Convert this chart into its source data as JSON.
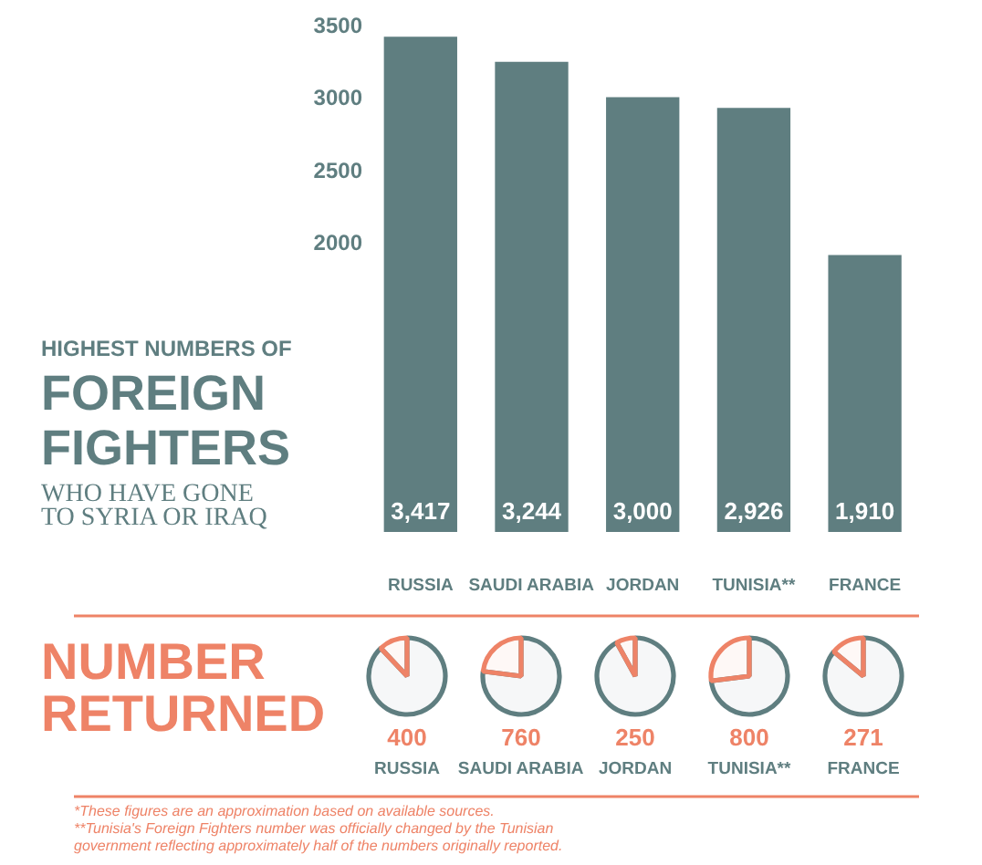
{
  "chart_data": [
    {
      "type": "bar",
      "title": "HIGHEST NUMBERS OF\nFOREIGN\nFIGHTERS\nWHO HAVE GONE\nTO SYRIA OR IRAQ",
      "categories": [
        "RUSSIA",
        "SAUDI ARABIA",
        "JORDAN",
        "TUNISIA**",
        "FRANCE"
      ],
      "values": [
        3417,
        3244,
        3000,
        2926,
        1910
      ],
      "value_labels": [
        "3,417",
        "3,244",
        "3,000",
        "2,926",
        "1,910"
      ],
      "color": "#5f7e80",
      "ylim": [
        0,
        3500
      ],
      "yticks": [
        2000,
        2500,
        3000,
        3500
      ]
    },
    {
      "type": "other",
      "title": "NUMBER\nRETURNED",
      "annotations": [
        "*These figures are an approximation based on available sources.",
        "**Tunisia's Foreign Fighters number was officially changed by the Tunisian\ngovernment reflecting approximately half of the numbers originally reported."
      ]
    },
    {
      "type": "pie",
      "title": "RUSSIA",
      "subtitle": "400",
      "categories": [
        null,
        null
      ],
      "values": [
        12,
        88
      ],
      "colors": [
        "#ee8367",
        "#5f7e80"
      ]
    },
    {
      "type": "pie",
      "title": "SAUDI ARABIA",
      "subtitle": "760",
      "categories": [
        null,
        null
      ],
      "values": [
        23,
        77
      ],
      "colors": [
        "#ee8367",
        "#5f7e80"
      ]
    },
    {
      "type": "pie",
      "title": "JORDAN",
      "subtitle": "250",
      "categories": [
        null,
        null
      ],
      "values": [
        8,
        92
      ],
      "colors": [
        "#ee8367",
        "#5f7e80"
      ]
    },
    {
      "type": "pie",
      "title": "TUNISIA**",
      "subtitle": "800",
      "categories": [
        null,
        null
      ],
      "values": [
        27,
        73
      ],
      "colors": [
        "#ee8367",
        "#5f7e80"
      ]
    },
    {
      "type": "pie",
      "title": "FRANCE",
      "subtitle": "271",
      "categories": [
        null,
        null
      ],
      "values": [
        14,
        86
      ],
      "colors": [
        "#ee8367",
        "#5f7e80"
      ]
    }
  ]
}
